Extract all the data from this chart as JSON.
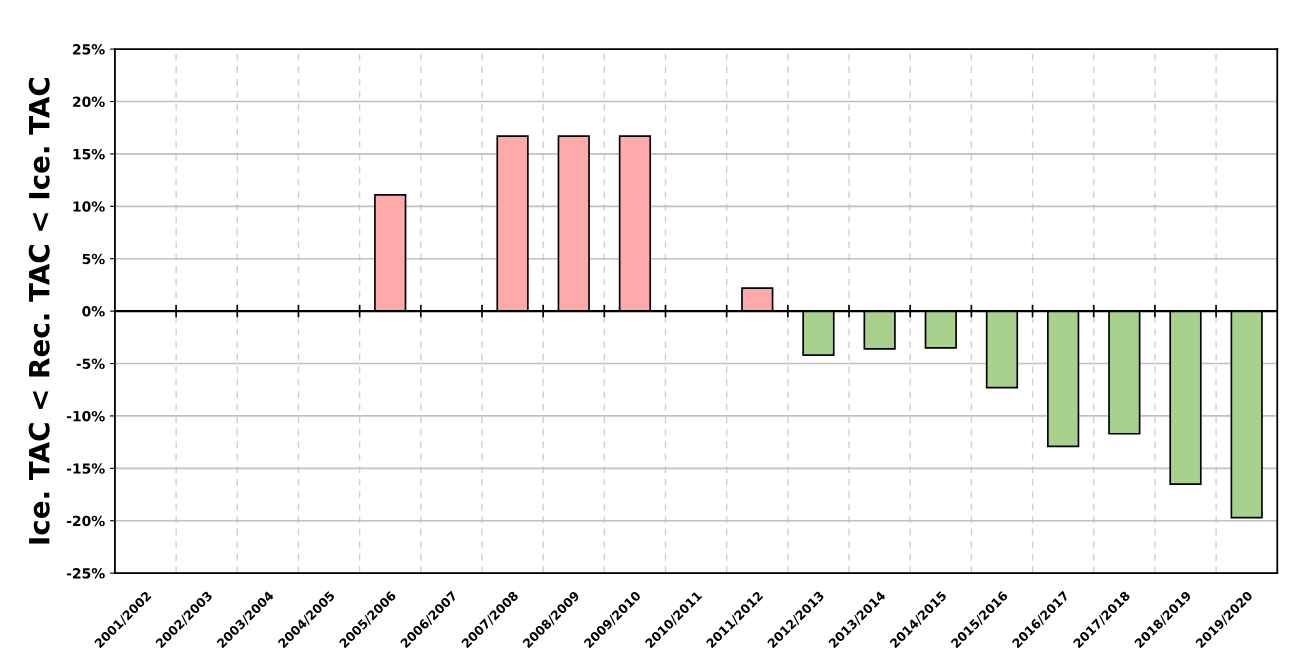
{
  "chart_data": {
    "type": "bar",
    "ylabel": "Ice. TAC < Rec. TAC < Ice. TAC",
    "categories": [
      "2001/2002",
      "2002/2003",
      "2003/2004",
      "2004/2005",
      "2005/2006",
      "2006/2007",
      "2007/2008",
      "2008/2009",
      "2009/2010",
      "2010/2011",
      "2011/2012",
      "2012/2013",
      "2013/2014",
      "2014/2015",
      "2015/2016",
      "2016/2017",
      "2017/2018",
      "2018/2019",
      "2019/2020"
    ],
    "values": [
      0,
      0,
      0,
      0,
      11.1,
      0,
      16.7,
      16.7,
      16.7,
      0,
      2.2,
      -4.2,
      -3.6,
      -3.5,
      -7.3,
      -12.9,
      -11.7,
      -16.5,
      -19.7
    ],
    "colors": [
      "#000000",
      "#000000",
      "#000000",
      "#000000",
      "#ffaaaa",
      "#000000",
      "#ffaaaa",
      "#ffaaaa",
      "#ffaaaa",
      "#000000",
      "#ffaaaa",
      "#a9d18e",
      "#a9d18e",
      "#a9d18e",
      "#a9d18e",
      "#a9d18e",
      "#a9d18e",
      "#a9d18e",
      "#a9d18e"
    ],
    "ylim": [
      -25,
      25
    ],
    "yticks": [
      {
        "value": -25,
        "label": "-25%"
      },
      {
        "value": -20,
        "label": "-20%"
      },
      {
        "value": -15,
        "label": "-15%"
      },
      {
        "value": -10,
        "label": "-10%"
      },
      {
        "value": -5,
        "label": "-5%"
      },
      {
        "value": 0,
        "label": "0%"
      },
      {
        "value": 5,
        "label": "5%"
      },
      {
        "value": 10,
        "label": "10%"
      },
      {
        "value": 15,
        "label": "15%"
      },
      {
        "value": 20,
        "label": "20%"
      },
      {
        "value": 25,
        "label": "25%"
      }
    ],
    "grid": true
  }
}
